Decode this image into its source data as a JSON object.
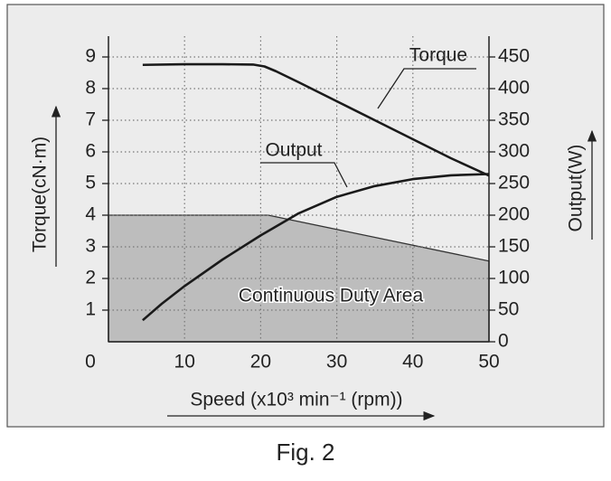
{
  "chart_data": {
    "type": "line",
    "caption": "Fig. 2",
    "x_label": "Speed (x10³ min⁻¹ (rpm))",
    "y_label": "Torque(cN·m)",
    "y2_label": "Output(W)",
    "xlim": [
      0,
      50
    ],
    "xticks": [
      0,
      10,
      20,
      30,
      40,
      50
    ],
    "ylim": [
      0,
      9.6
    ],
    "yticks": [
      1,
      2,
      3,
      4,
      5,
      6,
      7,
      8,
      9
    ],
    "y2lim": [
      0,
      480
    ],
    "y2ticks": [
      0,
      50,
      100,
      150,
      200,
      250,
      300,
      350,
      400,
      450
    ],
    "grid": true,
    "series": [
      {
        "name": "Continuous Duty Area",
        "kind": "area",
        "color": "#bdbdbd",
        "x": [
          0,
          21,
          50
        ],
        "values": [
          4,
          4,
          2.55
        ]
      },
      {
        "name": "Torque",
        "color": "#1a1a1a",
        "x": [
          4.5,
          10,
          15,
          19,
          20.5,
          22,
          25,
          30,
          35,
          40,
          45,
          50
        ],
        "values": [
          8.75,
          8.77,
          8.77,
          8.76,
          8.7,
          8.55,
          8.2,
          7.6,
          7.0,
          6.4,
          5.8,
          5.25
        ]
      },
      {
        "name": "Output",
        "axis": "y2",
        "color": "#1a1a1a",
        "x": [
          4.5,
          7,
          10,
          15,
          20,
          25,
          30,
          35,
          40,
          45,
          50
        ],
        "values": [
          34,
          60,
          88,
          130,
          168,
          203,
          229,
          246,
          257,
          263,
          265
        ]
      }
    ]
  }
}
